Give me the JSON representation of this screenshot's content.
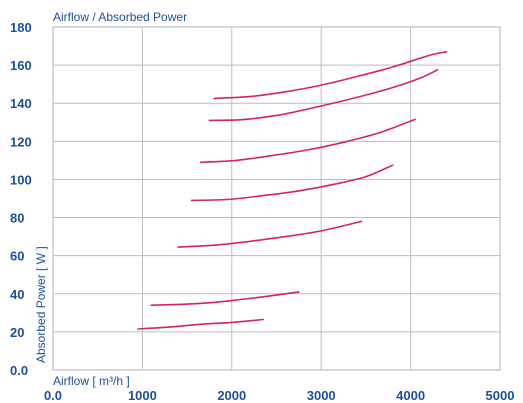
{
  "chart_data": {
    "type": "line",
    "title": "Airflow / Absorbed Power",
    "xlabel": "Airflow [ m³/h ]",
    "ylabel": "Absorbed Power [ W ]",
    "xlim": [
      0,
      5000
    ],
    "ylim": [
      0,
      180
    ],
    "x_ticks": [
      "0.0",
      "1000",
      "2000",
      "3000",
      "4000",
      "5000"
    ],
    "y_ticks": [
      "0.0",
      "20",
      "40",
      "60",
      "80",
      "100",
      "120",
      "140",
      "160",
      "180"
    ],
    "grid": true,
    "legend": "none",
    "line_color": "#d0246e",
    "series": [
      {
        "x": [
          950,
          1300,
          1650,
          2000,
          2350
        ],
        "y": [
          21.5,
          22.5,
          24,
          25,
          26.5
        ]
      },
      {
        "x": [
          1100,
          1450,
          1800,
          2100,
          2450,
          2750
        ],
        "y": [
          34,
          34.5,
          35.5,
          37,
          39,
          41
        ]
      },
      {
        "x": [
          1400,
          1800,
          2200,
          2600,
          3000,
          3450
        ],
        "y": [
          64.5,
          65.5,
          67.5,
          70,
          73,
          78
        ]
      },
      {
        "x": [
          1550,
          1950,
          2350,
          2750,
          3150,
          3500,
          3800
        ],
        "y": [
          89,
          89.5,
          91.5,
          94,
          97.5,
          101.5,
          107.5
        ]
      },
      {
        "x": [
          1650,
          2050,
          2450,
          2850,
          3250,
          3650,
          4050
        ],
        "y": [
          109,
          110,
          112.5,
          115.5,
          119.5,
          124.5,
          131.5
        ]
      },
      {
        "x": [
          1750,
          2150,
          2550,
          2950,
          3350,
          3750,
          4100,
          4300
        ],
        "y": [
          131,
          131.5,
          134,
          138,
          142.5,
          147.5,
          153,
          157.5
        ]
      },
      {
        "x": [
          1800,
          2200,
          2600,
          3000,
          3400,
          3800,
          4200,
          4400
        ],
        "y": [
          142.5,
          143.5,
          146,
          149.5,
          154,
          159,
          165,
          167
        ]
      }
    ]
  }
}
